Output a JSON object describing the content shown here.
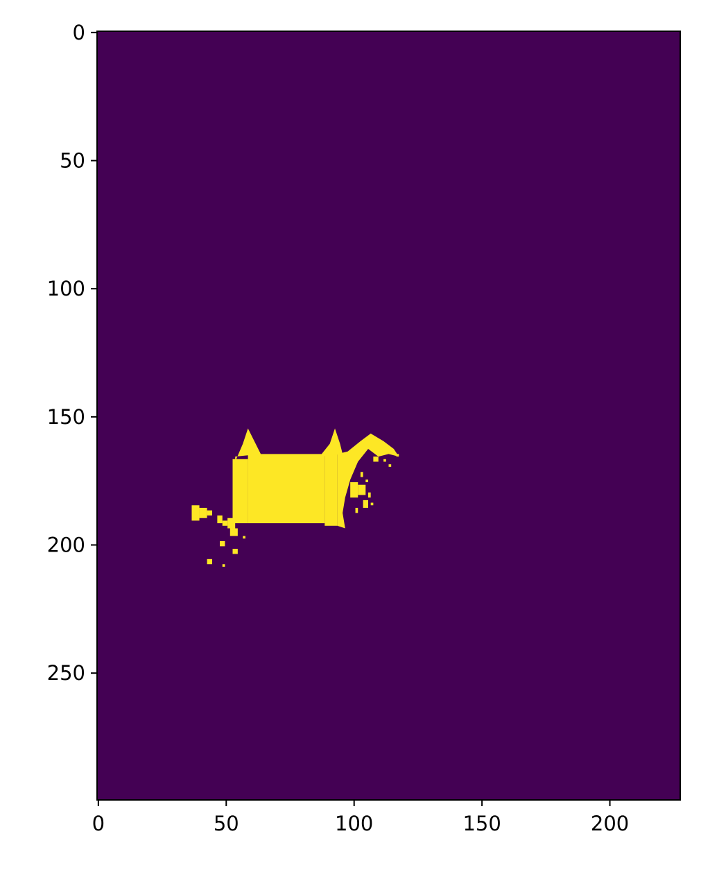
{
  "chart_data": {
    "type": "heatmap",
    "title": "",
    "xlabel": "",
    "ylabel": "",
    "image_shape": {
      "rows": 300,
      "cols": 228
    },
    "xlim": [
      -0.5,
      227.5
    ],
    "ylim": [
      299.5,
      -0.5
    ],
    "y_axis_inverted": true,
    "grid": false,
    "colormap": "viridis",
    "values_range": [
      0,
      1
    ],
    "colors": {
      "background": "#440154",
      "foreground": "#fde725"
    },
    "x_ticks": [
      {
        "value": 0,
        "label": "0"
      },
      {
        "value": 50,
        "label": "50"
      },
      {
        "value": 100,
        "label": "100"
      },
      {
        "value": 150,
        "label": "150"
      },
      {
        "value": 200,
        "label": "200"
      }
    ],
    "y_ticks": [
      {
        "value": 0,
        "label": "0"
      },
      {
        "value": 50,
        "label": "50"
      },
      {
        "value": 100,
        "label": "100"
      },
      {
        "value": 150,
        "label": "150"
      },
      {
        "value": 200,
        "label": "200"
      },
      {
        "value": 250,
        "label": "250"
      }
    ],
    "mask_regions_value_1": [
      {
        "type": "rect",
        "x0": 59,
        "x1": 89,
        "y0": 165,
        "y1": 192
      },
      {
        "type": "rect",
        "x0": 53,
        "x1": 59,
        "y0": 167,
        "y1": 192
      },
      {
        "type": "rect",
        "x0": 89,
        "x1": 94,
        "y0": 165,
        "y1": 193
      },
      {
        "type": "polygon",
        "points": [
          [
            54,
            168
          ],
          [
            57,
            161
          ],
          [
            59,
            155
          ],
          [
            62,
            161
          ],
          [
            64,
            165
          ],
          [
            54,
            166
          ]
        ]
      },
      {
        "type": "polygon",
        "points": [
          [
            87,
            166
          ],
          [
            91,
            161
          ],
          [
            93,
            155
          ],
          [
            95,
            161
          ],
          [
            96,
            165
          ]
        ]
      },
      {
        "type": "polygon",
        "points": [
          [
            94,
            165
          ],
          [
            98,
            164
          ],
          [
            103,
            160
          ],
          [
            107,
            157
          ],
          [
            112,
            160
          ],
          [
            116,
            163
          ],
          [
            118,
            166
          ],
          [
            114,
            165
          ],
          [
            110,
            166
          ],
          [
            106,
            163
          ],
          [
            102,
            168
          ],
          [
            99,
            175
          ],
          [
            97,
            182
          ],
          [
            96,
            188
          ],
          [
            97,
            194
          ],
          [
            94,
            193
          ]
        ]
      },
      {
        "type": "rect",
        "x0": 99,
        "x1": 102,
        "y0": 176,
        "y1": 182
      },
      {
        "type": "rect",
        "x0": 102,
        "x1": 105,
        "y0": 177,
        "y1": 181
      },
      {
        "type": "rect",
        "x0": 51,
        "x1": 54,
        "y0": 190,
        "y1": 194
      },
      {
        "type": "rect",
        "x0": 52,
        "x1": 55,
        "y0": 194,
        "y1": 197
      },
      {
        "type": "rect",
        "x0": 37,
        "x1": 40,
        "y0": 185,
        "y1": 191
      },
      {
        "type": "rect",
        "x0": 40,
        "x1": 43,
        "y0": 186,
        "y1": 190
      },
      {
        "type": "rect",
        "x0": 43,
        "x1": 45,
        "y0": 187,
        "y1": 189
      },
      {
        "type": "rect",
        "x0": 47,
        "x1": 49,
        "y0": 189,
        "y1": 192
      },
      {
        "type": "rect",
        "x0": 49,
        "x1": 51,
        "y0": 191,
        "y1": 193
      },
      {
        "type": "rect",
        "x0": 48,
        "x1": 50,
        "y0": 199,
        "y1": 201
      },
      {
        "type": "rect",
        "x0": 53,
        "x1": 55,
        "y0": 202,
        "y1": 204
      },
      {
        "type": "rect",
        "x0": 43,
        "x1": 45,
        "y0": 206,
        "y1": 208
      },
      {
        "type": "rect",
        "x0": 49,
        "x1": 50,
        "y0": 208,
        "y1": 209
      },
      {
        "type": "rect",
        "x0": 57,
        "x1": 58,
        "y0": 197,
        "y1": 198
      },
      {
        "type": "rect",
        "x0": 104,
        "x1": 106,
        "y0": 183,
        "y1": 186
      },
      {
        "type": "rect",
        "x0": 101,
        "x1": 102,
        "y0": 186,
        "y1": 188
      },
      {
        "type": "rect",
        "x0": 106,
        "x1": 107,
        "y0": 180,
        "y1": 182
      },
      {
        "type": "rect",
        "x0": 107,
        "x1": 108,
        "y0": 184,
        "y1": 185
      },
      {
        "type": "rect",
        "x0": 108,
        "x1": 110,
        "y0": 166,
        "y1": 168
      },
      {
        "type": "rect",
        "x0": 112,
        "x1": 113,
        "y0": 167,
        "y1": 168
      },
      {
        "type": "rect",
        "x0": 114,
        "x1": 115,
        "y0": 169,
        "y1": 170
      },
      {
        "type": "rect",
        "x0": 117,
        "x1": 118,
        "y0": 165,
        "y1": 166
      },
      {
        "type": "rect",
        "x0": 103,
        "x1": 104,
        "y0": 172,
        "y1": 174
      },
      {
        "type": "rect",
        "x0": 105,
        "x1": 106,
        "y0": 175,
        "y1": 176
      }
    ]
  }
}
